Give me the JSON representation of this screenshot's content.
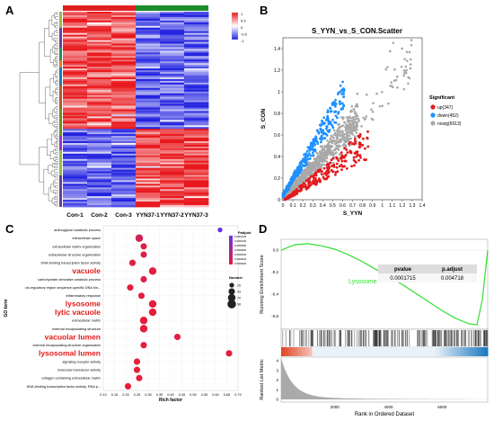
{
  "panels": {
    "a": {
      "letter": "A",
      "samples": [
        "Con-1",
        "Con-2",
        "Con-3",
        "YYN37-1",
        "YYN37-2",
        "YYN37-3"
      ],
      "legend_ticks": [
        "1",
        "0.5",
        "0",
        "-0.5",
        "-1"
      ],
      "group_colors": [
        "#e02020",
        "#1e8c2a"
      ]
    },
    "b": {
      "letter": "B",
      "title": "S_YYN_vs_S_CON.Scatter",
      "xlabel": "S_YYN",
      "ylabel": "S_CON",
      "xticks": [
        "0",
        "0.1",
        "0.2",
        "0.3",
        "0.4",
        "0.5",
        "0.6",
        "0.7",
        "0.8",
        "0.9",
        "1",
        "1.1",
        "1.2",
        "1.3",
        "1.4"
      ],
      "yticks": [
        "0",
        "0.2",
        "0.4",
        "0.6",
        "0.8",
        "1",
        "1.2",
        "1.4"
      ],
      "legend_title": "Significant",
      "legend": [
        {
          "label": "up(347)",
          "color": "#e31a1c"
        },
        {
          "label": "down(452)",
          "color": "#1e90ff"
        },
        {
          "label": "nosig(6913)",
          "color": "#a9a9a9"
        }
      ]
    },
    "c": {
      "letter": "C",
      "ylabel": "GO term",
      "xlabel": "Rich factor",
      "xticks": [
        "0.10",
        "0.15",
        "0.20",
        "0.25",
        "0.30",
        "0.35",
        "0.40",
        "0.45",
        "0.50",
        "0.55",
        "0.60",
        "0.65",
        "0.70"
      ],
      "padj_title": "Padjust",
      "padj_ticks": [
        "0.0000126",
        "0.0000100",
        "0.0000080",
        "0.0000060",
        "0.0000040",
        "0.0000020",
        "0.0000000"
      ],
      "number_title": "Number",
      "number_values": [
        "16",
        "43",
        "70",
        "98"
      ]
    },
    "d": {
      "letter": "D",
      "ylabel_top": "Running Enrichment Score",
      "ylabel_bottom": "Ranked List Metric",
      "xlabel": "Rank in Ordered Dataset",
      "yticks_top": [
        "0.0",
        "-0.2",
        "-0.4",
        "-0.6"
      ],
      "yticks_bottom": [
        "4",
        "3",
        "2",
        "1",
        "0"
      ],
      "xticks": [
        "2000",
        "4000",
        "6000"
      ],
      "term": "Lysosome",
      "table": {
        "headers": [
          "pvalue",
          "p.adjust"
        ],
        "values": [
          "0.0001715",
          "0.004718"
        ]
      },
      "curve_color": "#33dd33"
    }
  },
  "chart_data": [
    {
      "type": "heatmap",
      "columns": [
        "Con-1",
        "Con-2",
        "Con-3",
        "YYN37-1",
        "YYN37-2",
        "YYN37-3"
      ],
      "scale": {
        "min": -1,
        "max": 1,
        "ticks": [
          "1",
          "0.5",
          "0",
          "-0.5",
          "-1"
        ]
      },
      "colors": {
        "high": "#e8191e",
        "mid": "#ffffff",
        "low": "#2323e0"
      },
      "blocks": [
        {
          "pattern": "high in Con, low in YYN37",
          "fraction": 0.6
        },
        {
          "pattern": "low in Con, high in YYN37",
          "fraction": 0.4
        }
      ]
    },
    {
      "type": "scatter",
      "title": "S_YYN_vs_S_CON.Scatter",
      "xlabel": "S_YYN",
      "ylabel": "S_CON",
      "xlim": [
        0,
        1.4
      ],
      "ylim": [
        0,
        1.5
      ],
      "series": [
        {
          "name": "up(347)",
          "color": "#e31a1c"
        },
        {
          "name": "down(452)",
          "color": "#1e90ff"
        },
        {
          "name": "nosig(6913)",
          "color": "#a9a9a9"
        }
      ]
    },
    {
      "type": "scatter",
      "subtype": "bubble",
      "xlabel": "Rich factor",
      "ylabel": "GO term",
      "xlim": [
        0.1,
        0.7
      ],
      "categories": [
        "aminoglycan catabolic process",
        "extracellular space",
        "extracellular matrix organization",
        "extracellular structure organization",
        "DNA-binding transcription factor activity",
        "vacuole",
        "carbohydrate derivative catabolic process",
        "cis-regulatory region sequence-specific DNA bin...",
        "inflammatory response",
        "lysosome",
        "lytic vacuole",
        "extracellular matrix",
        "external encapsulating structure",
        "vacuolar lumen",
        "external encapsulating structure organization",
        "lysosomal lumen",
        "signaling receptor activity",
        "molecular transducer activity",
        "collagen-containing extracellular matrix",
        "DNA-binding transcription factor activity, RNA p..."
      ],
      "highlighted": [
        "vacuole",
        "lysosome",
        "lytic vacuole",
        "vacuolar lumen",
        "lysosomal lumen"
      ],
      "x": [
        0.62,
        0.26,
        0.28,
        0.28,
        0.23,
        0.32,
        0.28,
        0.22,
        0.27,
        0.32,
        0.32,
        0.28,
        0.28,
        0.43,
        0.28,
        0.66,
        0.25,
        0.25,
        0.26,
        0.21
      ],
      "size": [
        16,
        70,
        43,
        43,
        43,
        70,
        43,
        43,
        43,
        70,
        70,
        70,
        70,
        43,
        43,
        43,
        43,
        43,
        43,
        43
      ],
      "padjust": [
        1.26e-05,
        2e-06,
        1e-06,
        1e-06,
        5e-07,
        2e-07,
        8e-07,
        4e-07,
        3e-07,
        1e-07,
        1e-07,
        1e-07,
        1e-07,
        6e-07,
        1e-07,
        3e-07,
        0.0,
        0.0,
        0.0,
        0.0
      ]
    },
    {
      "type": "line",
      "subtype": "GSEA",
      "xlabel": "Rank in Ordered Dataset",
      "ylabel": "Running Enrichment Score",
      "term": "Lysosome",
      "x": [
        0,
        500,
        1000,
        1500,
        2000,
        2500,
        3000,
        3500,
        4000,
        4500,
        5000,
        5500,
        6000,
        6500,
        7000,
        7300,
        7500,
        7700
      ],
      "y": [
        0.0,
        0.05,
        0.06,
        0.04,
        0.01,
        -0.04,
        -0.1,
        -0.17,
        -0.24,
        -0.31,
        -0.39,
        -0.47,
        -0.55,
        -0.62,
        -0.67,
        -0.68,
        -0.45,
        0.0
      ],
      "xlim": [
        0,
        7700
      ],
      "ylim": [
        -0.72,
        0.1
      ]
    }
  ]
}
